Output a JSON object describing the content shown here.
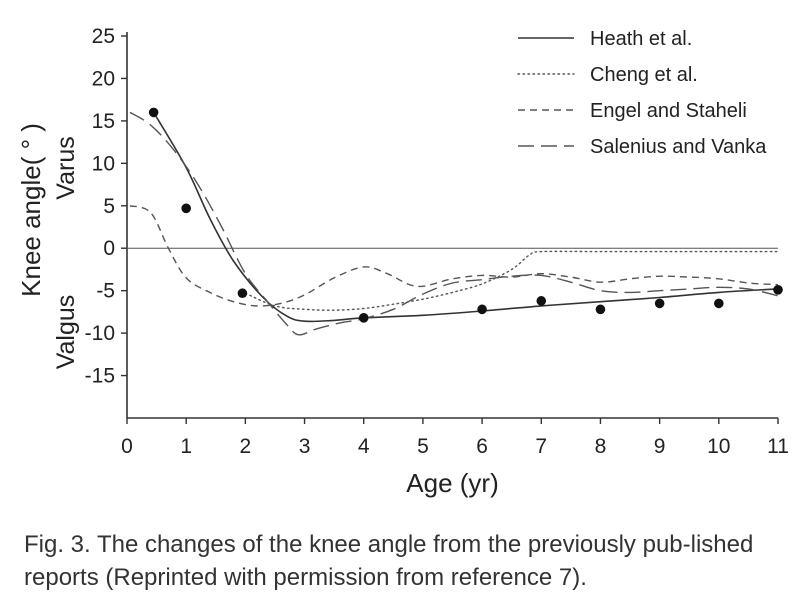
{
  "chart_data": {
    "type": "line",
    "xlabel": "Age (yr)",
    "ylabel": "Knee angle( ° )",
    "ylabel_top": "Varus",
    "ylabel_bottom": "Valgus",
    "xlim": [
      0,
      11
    ],
    "ylim": [
      -20,
      25
    ],
    "xticks": [
      0,
      1,
      2,
      3,
      4,
      5,
      6,
      7,
      8,
      9,
      10,
      11
    ],
    "yticks": [
      25,
      20,
      15,
      10,
      5,
      0,
      -5,
      -10,
      -15
    ],
    "zero_line": true,
    "series": [
      {
        "name": "Heath et al.",
        "style": "solid",
        "points": [
          [
            0.45,
            16
          ],
          [
            1.0,
            9.5
          ],
          [
            1.4,
            3.5
          ],
          [
            1.8,
            -1.5
          ],
          [
            2.3,
            -5.8
          ],
          [
            2.7,
            -8.0
          ],
          [
            3.0,
            -8.6
          ],
          [
            3.5,
            -8.5
          ],
          [
            4.0,
            -8.2
          ],
          [
            5,
            -7.9
          ],
          [
            6,
            -7.4
          ],
          [
            7,
            -6.8
          ],
          [
            8,
            -6.3
          ],
          [
            9,
            -5.8
          ],
          [
            10,
            -5.2
          ],
          [
            11,
            -4.8
          ]
        ]
      },
      {
        "name": "Cheng et al.",
        "style": "dotted",
        "points": [
          [
            2.0,
            -5.3
          ],
          [
            2.5,
            -6.8
          ],
          [
            3.0,
            -7.2
          ],
          [
            3.5,
            -7.3
          ],
          [
            4.0,
            -7.1
          ],
          [
            4.5,
            -6.6
          ],
          [
            5.0,
            -6.0
          ],
          [
            5.5,
            -5.2
          ],
          [
            6.0,
            -4.2
          ],
          [
            6.5,
            -2.5
          ],
          [
            6.8,
            -0.8
          ],
          [
            7.0,
            -0.4
          ],
          [
            8,
            -0.4
          ],
          [
            9,
            -0.4
          ],
          [
            10,
            -0.4
          ],
          [
            11,
            -0.4
          ]
        ]
      },
      {
        "name": "Engel and Staheli",
        "style": "dashed",
        "points": [
          [
            0.05,
            5
          ],
          [
            0.4,
            4.2
          ],
          [
            0.7,
            0
          ],
          [
            1.0,
            -3.5
          ],
          [
            1.4,
            -5.2
          ],
          [
            1.8,
            -6.3
          ],
          [
            2.2,
            -6.8
          ],
          [
            2.6,
            -6.5
          ],
          [
            3.0,
            -5.5
          ],
          [
            3.5,
            -3.5
          ],
          [
            4.0,
            -2.2
          ],
          [
            4.4,
            -3.0
          ],
          [
            4.9,
            -4.5
          ],
          [
            5.5,
            -3.6
          ],
          [
            6.0,
            -3.2
          ],
          [
            6.5,
            -3.4
          ],
          [
            7.0,
            -3.0
          ],
          [
            7.5,
            -3.4
          ],
          [
            8.0,
            -4.0
          ],
          [
            8.5,
            -3.6
          ],
          [
            9.0,
            -3.3
          ],
          [
            9.5,
            -3.4
          ],
          [
            10.0,
            -3.6
          ],
          [
            10.5,
            -4.1
          ],
          [
            11,
            -4.3
          ]
        ]
      },
      {
        "name": "Salenius and Vanka",
        "style": "longdash",
        "points": [
          [
            0.05,
            16
          ],
          [
            0.4,
            14.5
          ],
          [
            0.8,
            11.5
          ],
          [
            1.2,
            7.5
          ],
          [
            1.6,
            2.5
          ],
          [
            2.0,
            -3.0
          ],
          [
            2.4,
            -6.5
          ],
          [
            2.7,
            -9.0
          ],
          [
            2.9,
            -10.2
          ],
          [
            3.2,
            -9.5
          ],
          [
            3.6,
            -8.8
          ],
          [
            4.0,
            -8.3
          ],
          [
            4.5,
            -7.2
          ],
          [
            5.0,
            -5.4
          ],
          [
            5.5,
            -4.1
          ],
          [
            6.0,
            -3.7
          ],
          [
            6.5,
            -3.3
          ],
          [
            7.0,
            -3.2
          ],
          [
            7.5,
            -4.0
          ],
          [
            8.0,
            -5.0
          ],
          [
            8.5,
            -5.2
          ],
          [
            9.0,
            -5.0
          ],
          [
            9.5,
            -4.8
          ],
          [
            10.0,
            -4.6
          ],
          [
            10.5,
            -4.8
          ],
          [
            11,
            -5.6
          ]
        ]
      }
    ],
    "scatter": {
      "name": "Data points",
      "points": [
        [
          0.45,
          16
        ],
        [
          1.0,
          4.7
        ],
        [
          1.95,
          -5.3
        ],
        [
          4.0,
          -8.2
        ],
        [
          6.0,
          -7.2
        ],
        [
          7.0,
          -6.2
        ],
        [
          8.0,
          -7.2
        ],
        [
          9.0,
          -6.5
        ],
        [
          10.0,
          -6.5
        ],
        [
          11.0,
          -4.9
        ]
      ]
    },
    "legend_position": "top-right"
  },
  "caption": {
    "label": "Fig. 3.",
    "text": "The changes of the knee angle from the previously pub-lished reports (Reprinted with permission from reference 7)."
  }
}
